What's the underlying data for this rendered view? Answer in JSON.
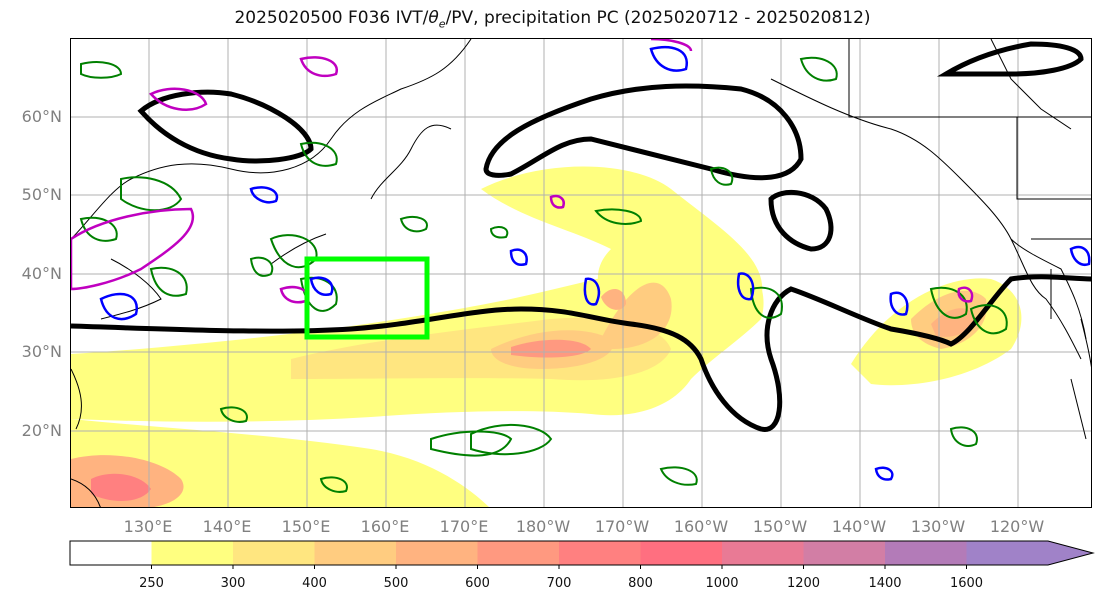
{
  "title": {
    "prefix": "2025020500 F036 IVT/",
    "theta": "θ",
    "theta_sub": "e",
    "suffix": "/PV, precipitation PC (2025020712 - 2025020812)"
  },
  "lat_labels": [
    "60°N",
    "50°N",
    "40°N",
    "30°N",
    "20°N"
  ],
  "lon_labels": [
    "130°E",
    "140°E",
    "150°E",
    "160°E",
    "170°E",
    "180°W",
    "170°W",
    "160°W",
    "150°W",
    "140°W",
    "130°W",
    "120°W"
  ],
  "colorbar": {
    "levels": [
      "250",
      "300",
      "400",
      "500",
      "600",
      "700",
      "800",
      "1000",
      "1200",
      "1400",
      "1600"
    ],
    "colors": [
      "#ffffff",
      "#ffff80",
      "#ffe680",
      "#ffcc80",
      "#ffb380",
      "#ff9980",
      "#ff8080",
      "#ff6f80",
      "#e97a95",
      "#d27ea5",
      "#b37bb8",
      "#a082c8"
    ],
    "extend": "max"
  },
  "map": {
    "extent_lon": "121°E – 109°W",
    "extent_lat": "10°N – 70°N",
    "box_color": "#00ff00",
    "theta_contour_color": "#000000",
    "pv_contour_colors": [
      "#008000",
      "#0000ff",
      "#c000c0"
    ]
  }
}
